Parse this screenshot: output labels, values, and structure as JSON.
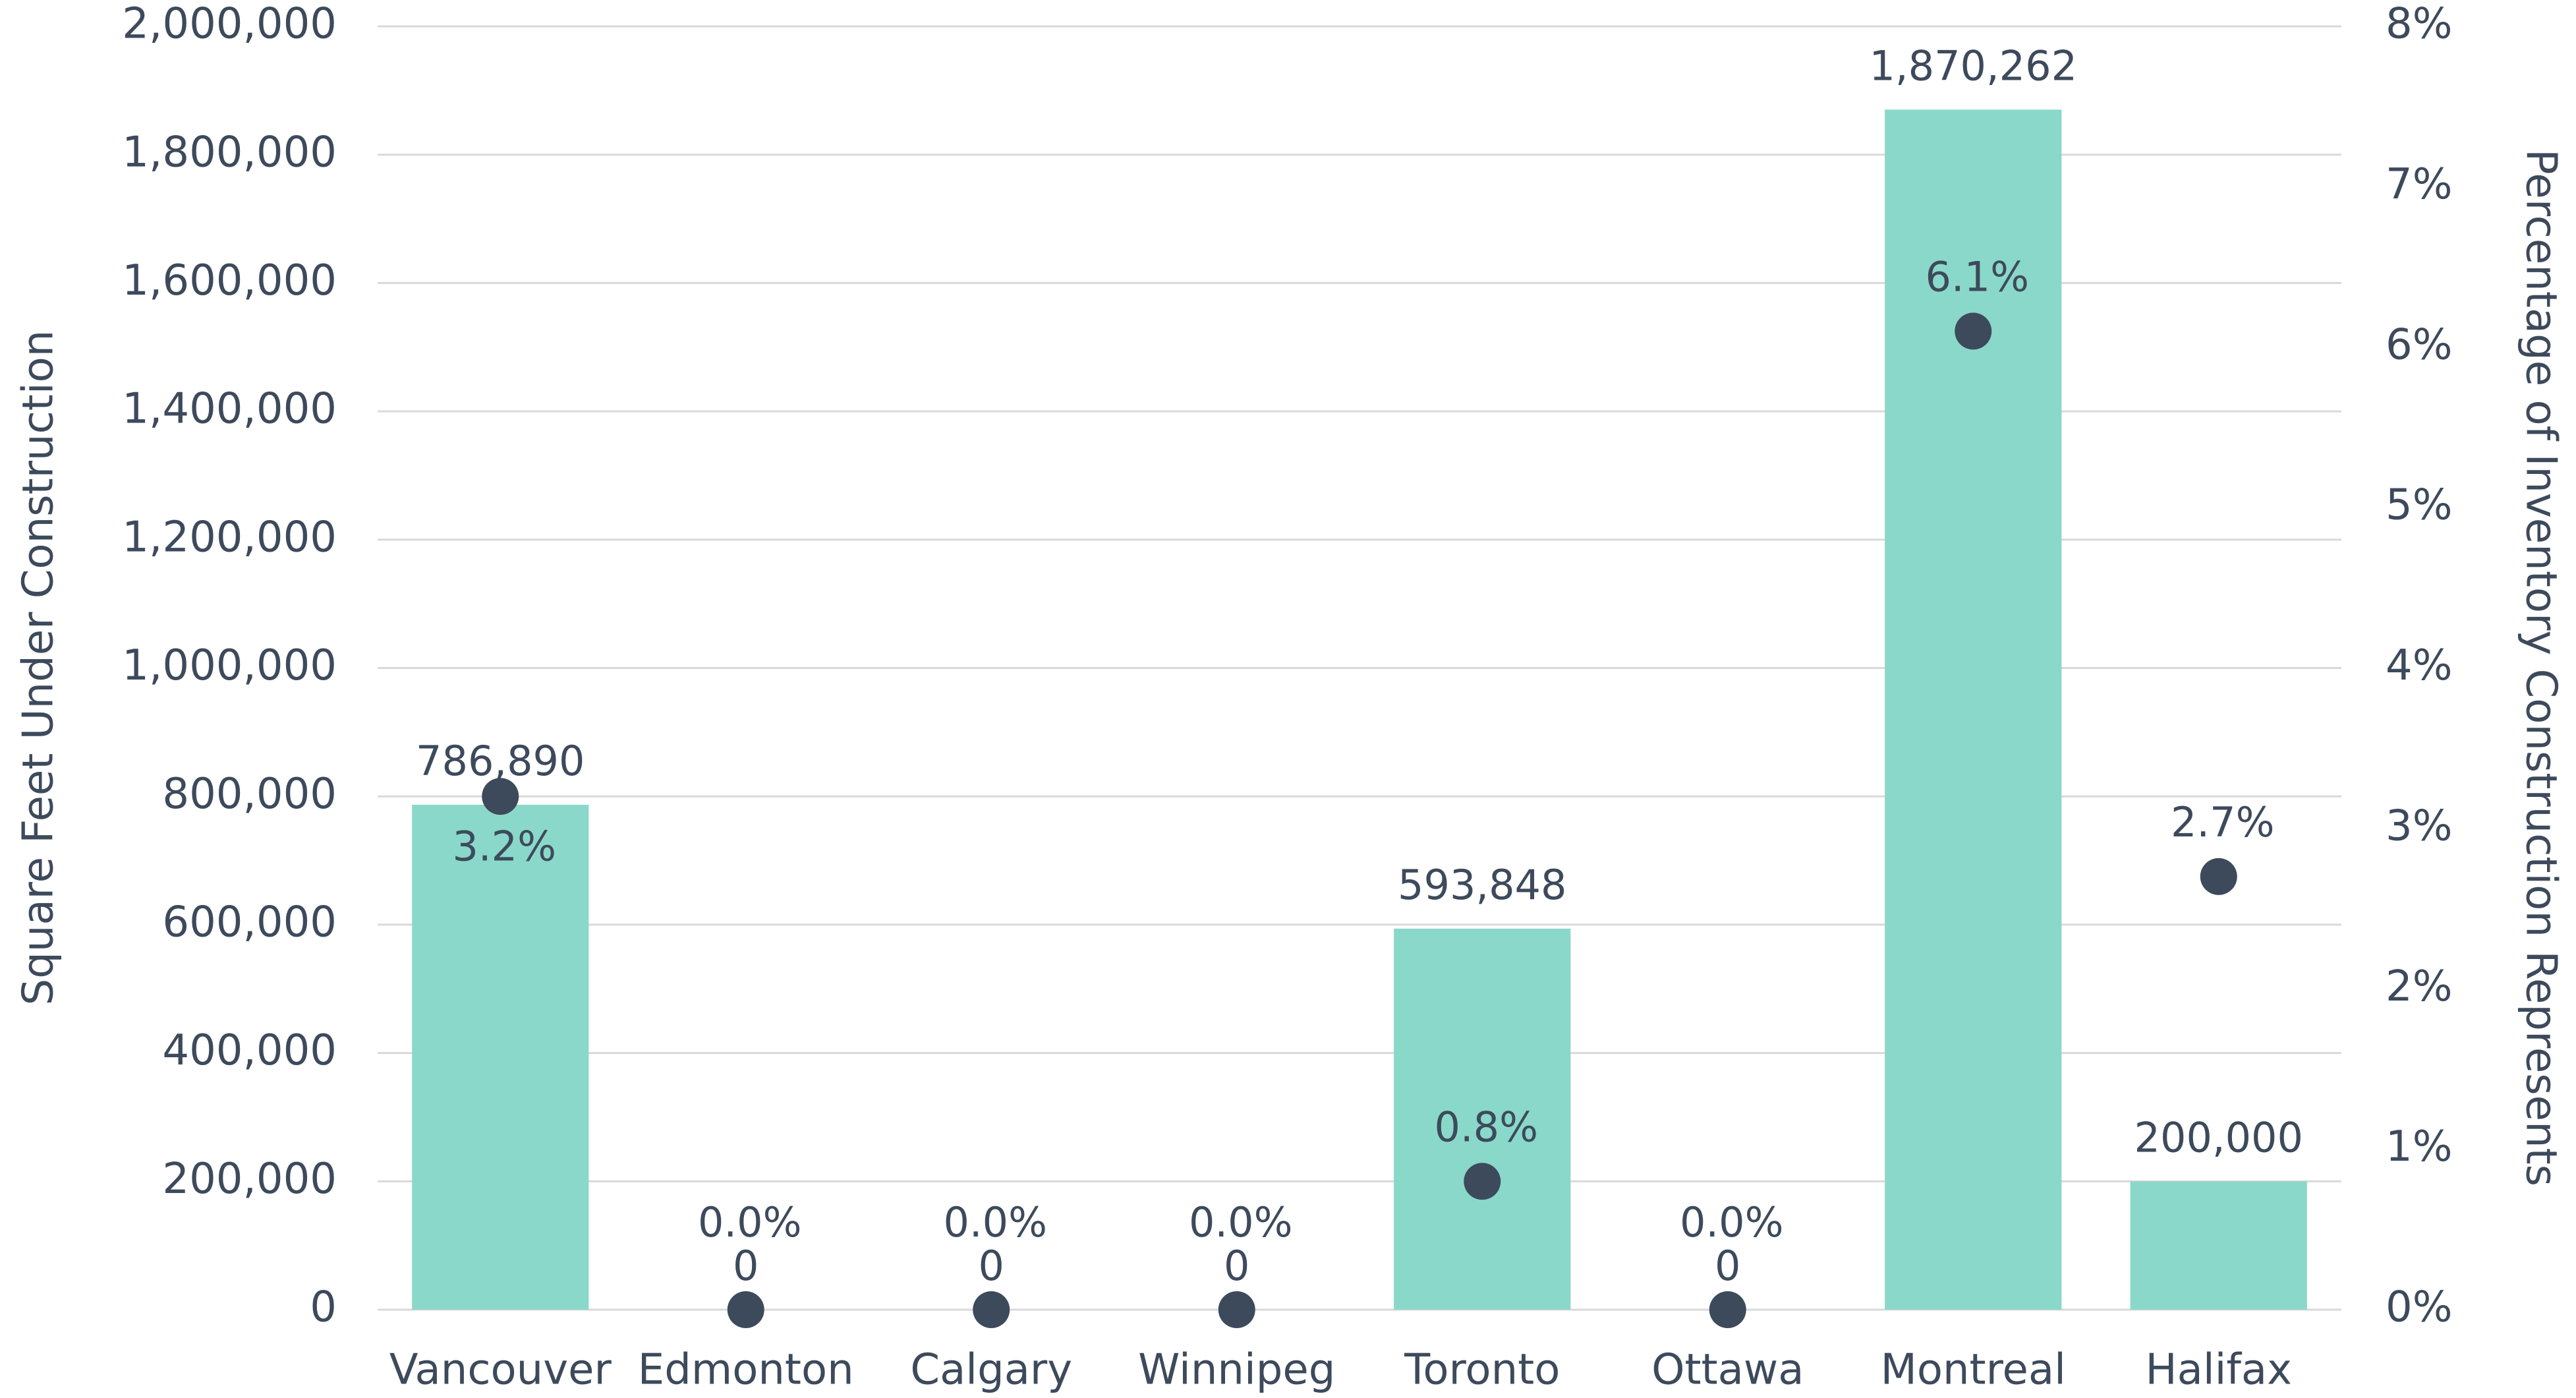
{
  "chart_data": {
    "type": "bar",
    "categories": [
      "Vancouver",
      "Edmonton",
      "Calgary",
      "Winnipeg",
      "Toronto",
      "Ottawa",
      "Montreal",
      "Halifax"
    ],
    "series": [
      {
        "type": "bar",
        "color": "#8ad8c9",
        "values": [
          786890,
          0,
          0,
          0,
          593848,
          0,
          1870262,
          200000
        ],
        "value_labels": [
          "786,890",
          "0",
          "0",
          "0",
          "593,848",
          "0",
          "1,870,262",
          "200,000"
        ]
      },
      {
        "type": "scatter",
        "axis": "y2",
        "color": "#3d4a5c",
        "values": [
          3.2,
          0,
          0,
          0,
          0.8,
          0,
          6.1,
          2.7
        ],
        "value_labels": [
          "3.2%",
          "0.0%",
          "0.0%",
          "0.0%",
          "0.8%",
          "0.0%",
          "6.1%",
          "2.7%"
        ]
      }
    ],
    "ylabel": "Square Feet Under Construction",
    "y2label": "Percentage of Inventory Construction Represents",
    "ylim": [
      0,
      2000000
    ],
    "yticks": [
      0,
      {
        "value": 200000,
        "label": "200,000"
      },
      {
        "value": 400000,
        "label": "400,000"
      },
      {
        "value": 600000,
        "label": "600,000"
      },
      {
        "value": 800000,
        "label": "800,000"
      },
      {
        "value": 1000000,
        "label": "1,000,000"
      },
      {
        "value": 1200000,
        "label": "1,200,000"
      },
      {
        "value": 1400000,
        "label": "1,400,000"
      },
      {
        "value": 1600000,
        "label": "1,600,000"
      },
      {
        "value": 1800000,
        "label": "1,800,000"
      },
      {
        "value": 2000000,
        "label": "2,000,000"
      }
    ],
    "y2lim": [
      0,
      8
    ],
    "y2ticks": [
      {
        "value": 0,
        "label": "0%"
      },
      {
        "value": 1,
        "label": "1%"
      },
      {
        "value": 2,
        "label": "2%"
      },
      {
        "value": 3,
        "label": "3%"
      },
      {
        "value": 4,
        "label": "4%"
      },
      {
        "value": 5,
        "label": "5%"
      },
      {
        "value": 6,
        "label": "6%"
      },
      {
        "value": 7,
        "label": "7%"
      },
      {
        "value": 8,
        "label": "8%"
      }
    ],
    "grid": true
  }
}
